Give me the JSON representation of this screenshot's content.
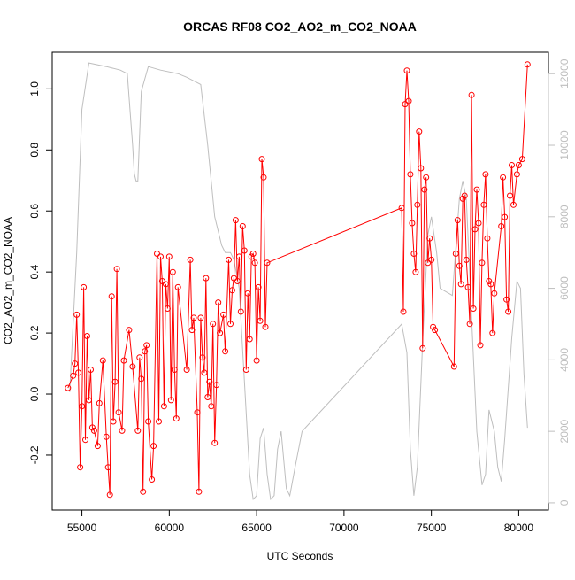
{
  "chart_data": {
    "type": "line",
    "title": "ORCAS RF08 CO2_AO2_m_CO2_NOAA",
    "xlabel": "UTC Seconds",
    "ylabel": "CO2_AO2_m_CO2_NOAA",
    "xlim": [
      53300,
      81700
    ],
    "ylim": [
      -0.38,
      1.12
    ],
    "y2lim": [
      -200,
      12600
    ],
    "x_ticks": [
      55000,
      60000,
      65000,
      70000,
      75000,
      80000
    ],
    "y_ticks": [
      -0.2,
      0.0,
      0.2,
      0.4,
      0.6,
      0.8,
      1.0
    ],
    "y_tick_labels": [
      "-0.2",
      "0.0",
      "0.2",
      "0.4",
      "0.6",
      "0.8",
      "1.0"
    ],
    "y2_ticks": [
      0,
      2000,
      4000,
      6000,
      8000,
      10000,
      12000
    ],
    "colors": {
      "series": "#ff0000",
      "altitude": "#bebebe",
      "axis": "#000000",
      "right_axis": "#bebebe"
    },
    "series": [
      {
        "role": "primary",
        "values": [
          [
            54200,
            0.02
          ],
          [
            54500,
            0.06
          ],
          [
            54600,
            0.1
          ],
          [
            54700,
            0.26
          ],
          [
            54800,
            0.07
          ],
          [
            54900,
            -0.24
          ],
          [
            55000,
            -0.04
          ],
          [
            55100,
            0.35
          ],
          [
            55200,
            -0.15
          ],
          [
            55300,
            0.19
          ],
          [
            55400,
            -0.02
          ],
          [
            55500,
            0.08
          ],
          [
            55600,
            -0.11
          ],
          [
            55700,
            -0.12
          ],
          [
            55900,
            -0.17
          ],
          [
            56000,
            -0.03
          ],
          [
            56200,
            0.11
          ],
          [
            56400,
            -0.14
          ],
          [
            56500,
            -0.24
          ],
          [
            56600,
            -0.33
          ],
          [
            56700,
            0.32
          ],
          [
            56800,
            -0.09
          ],
          [
            56900,
            0.04
          ],
          [
            57000,
            0.41
          ],
          [
            57100,
            -0.06
          ],
          [
            57300,
            -0.12
          ],
          [
            57400,
            0.11
          ],
          [
            57700,
            0.21
          ],
          [
            57900,
            0.09
          ],
          [
            58200,
            -0.12
          ],
          [
            58300,
            0.12
          ],
          [
            58400,
            0.05
          ],
          [
            58500,
            -0.32
          ],
          [
            58600,
            0.14
          ],
          [
            58700,
            0.16
          ],
          [
            58800,
            -0.09
          ],
          [
            59000,
            -0.28
          ],
          [
            59100,
            -0.17
          ],
          [
            59300,
            0.46
          ],
          [
            59400,
            -0.09
          ],
          [
            59500,
            0.45
          ],
          [
            59600,
            0.37
          ],
          [
            59700,
            -0.04
          ],
          [
            59800,
            0.36
          ],
          [
            59900,
            0.28
          ],
          [
            60000,
            0.45
          ],
          [
            60100,
            -0.02
          ],
          [
            60200,
            0.4
          ],
          [
            60300,
            0.08
          ],
          [
            60400,
            -0.08
          ],
          [
            60500,
            0.35
          ],
          [
            61000,
            0.08
          ],
          [
            61200,
            0.44
          ],
          [
            61300,
            0.21
          ],
          [
            61400,
            0.25
          ],
          [
            61600,
            -0.06
          ],
          [
            61700,
            -0.32
          ],
          [
            61800,
            0.25
          ],
          [
            61900,
            0.12
          ],
          [
            62000,
            0.07
          ],
          [
            62100,
            0.38
          ],
          [
            62200,
            -0.01
          ],
          [
            62300,
            0.04
          ],
          [
            62400,
            -0.04
          ],
          [
            62500,
            0.23
          ],
          [
            62600,
            -0.16
          ],
          [
            62700,
            0.03
          ],
          [
            62800,
            0.3
          ],
          [
            62900,
            0.2
          ],
          [
            63100,
            0.26
          ],
          [
            63200,
            0.14
          ],
          [
            63400,
            0.44
          ],
          [
            63500,
            0.23
          ],
          [
            63600,
            0.34
          ],
          [
            63700,
            0.38
          ],
          [
            63800,
            0.57
          ],
          [
            63900,
            0.37
          ],
          [
            64000,
            0.45
          ],
          [
            64100,
            0.27
          ],
          [
            64200,
            0.55
          ],
          [
            64300,
            0.47
          ],
          [
            64400,
            0.08
          ],
          [
            64500,
            0.33
          ],
          [
            64600,
            0.18
          ],
          [
            64700,
            0.45
          ],
          [
            64800,
            0.46
          ],
          [
            64900,
            0.43
          ],
          [
            65000,
            0.11
          ],
          [
            65100,
            0.35
          ],
          [
            65200,
            0.24
          ],
          [
            65300,
            0.77
          ],
          [
            65400,
            0.71
          ],
          [
            65500,
            0.22
          ],
          [
            65600,
            0.43
          ],
          [
            73300,
            0.61
          ],
          [
            73400,
            0.27
          ],
          [
            73500,
            0.95
          ],
          [
            73600,
            1.06
          ],
          [
            73700,
            0.96
          ],
          [
            73800,
            0.72
          ],
          [
            73900,
            0.56
          ],
          [
            74000,
            0.46
          ],
          [
            74100,
            0.4
          ],
          [
            74200,
            0.62
          ],
          [
            74300,
            0.86
          ],
          [
            74400,
            0.74
          ],
          [
            74500,
            0.15
          ],
          [
            74600,
            0.67
          ],
          [
            74700,
            0.71
          ],
          [
            74800,
            0.43
          ],
          [
            74900,
            0.51
          ],
          [
            75000,
            0.44
          ],
          [
            75100,
            0.22
          ],
          [
            75200,
            0.21
          ],
          [
            76300,
            0.09
          ],
          [
            76400,
            0.46
          ],
          [
            76500,
            0.57
          ],
          [
            76600,
            0.42
          ],
          [
            76700,
            0.36
          ],
          [
            76800,
            0.64
          ],
          [
            76900,
            0.65
          ],
          [
            77000,
            0.44
          ],
          [
            77100,
            0.35
          ],
          [
            77200,
            0.23
          ],
          [
            77300,
            0.98
          ],
          [
            77400,
            0.28
          ],
          [
            77500,
            0.54
          ],
          [
            77600,
            0.67
          ],
          [
            77700,
            0.56
          ],
          [
            77800,
            0.16
          ],
          [
            77900,
            0.43
          ],
          [
            78000,
            0.62
          ],
          [
            78100,
            0.72
          ],
          [
            78200,
            0.51
          ],
          [
            78300,
            0.37
          ],
          [
            78400,
            0.36
          ],
          [
            78500,
            0.2
          ],
          [
            78600,
            0.33
          ],
          [
            79000,
            0.55
          ],
          [
            79100,
            0.71
          ],
          [
            79200,
            0.58
          ],
          [
            79300,
            0.31
          ],
          [
            79400,
            0.27
          ],
          [
            79500,
            0.65
          ],
          [
            79600,
            0.75
          ],
          [
            79700,
            0.62
          ],
          [
            79900,
            0.72
          ],
          [
            80000,
            0.75
          ],
          [
            80200,
            0.77
          ],
          [
            80500,
            1.08
          ]
        ]
      },
      {
        "role": "altitude (right axis)",
        "values": [
          [
            54300,
            3100
          ],
          [
            54700,
            7000
          ],
          [
            55000,
            11000
          ],
          [
            55400,
            12300
          ],
          [
            56400,
            12200
          ],
          [
            57200,
            12100
          ],
          [
            57600,
            12000
          ],
          [
            57900,
            10000
          ],
          [
            58000,
            9200
          ],
          [
            58100,
            9000
          ],
          [
            58200,
            9000
          ],
          [
            58400,
            11500
          ],
          [
            58800,
            12200
          ],
          [
            59500,
            12100
          ],
          [
            60500,
            12000
          ],
          [
            61000,
            11900
          ],
          [
            61800,
            11700
          ],
          [
            62200,
            10000
          ],
          [
            62600,
            8000
          ],
          [
            63000,
            7200
          ],
          [
            63200,
            7000
          ],
          [
            63500,
            7000
          ],
          [
            63700,
            6800
          ],
          [
            64000,
            6000
          ],
          [
            64300,
            3400
          ],
          [
            64600,
            800
          ],
          [
            64800,
            100
          ],
          [
            65000,
            200
          ],
          [
            65200,
            1800
          ],
          [
            65400,
            2100
          ],
          [
            65600,
            800
          ],
          [
            65800,
            100
          ],
          [
            66000,
            200
          ],
          [
            66200,
            1500
          ],
          [
            66400,
            2000
          ],
          [
            66700,
            400
          ],
          [
            66900,
            200
          ],
          [
            67200,
            1000
          ],
          [
            67600,
            2000
          ],
          [
            73300,
            5000
          ],
          [
            73600,
            4200
          ],
          [
            73800,
            1500
          ],
          [
            74000,
            200
          ],
          [
            74200,
            1000
          ],
          [
            74500,
            4500
          ],
          [
            74800,
            7500
          ],
          [
            75000,
            8000
          ],
          [
            75300,
            7000
          ],
          [
            75500,
            6000
          ],
          [
            76200,
            5800
          ],
          [
            76600,
            8500
          ],
          [
            76800,
            9000
          ],
          [
            77000,
            8500
          ],
          [
            77300,
            5200
          ],
          [
            77600,
            2000
          ],
          [
            77900,
            500
          ],
          [
            78100,
            800
          ],
          [
            78300,
            2600
          ],
          [
            78600,
            2000
          ],
          [
            78800,
            1000
          ],
          [
            79000,
            600
          ],
          [
            79200,
            1800
          ],
          [
            79600,
            4600
          ],
          [
            79900,
            6200
          ],
          [
            80100,
            6000
          ],
          [
            80300,
            3600
          ],
          [
            80500,
            2100
          ]
        ]
      }
    ]
  }
}
